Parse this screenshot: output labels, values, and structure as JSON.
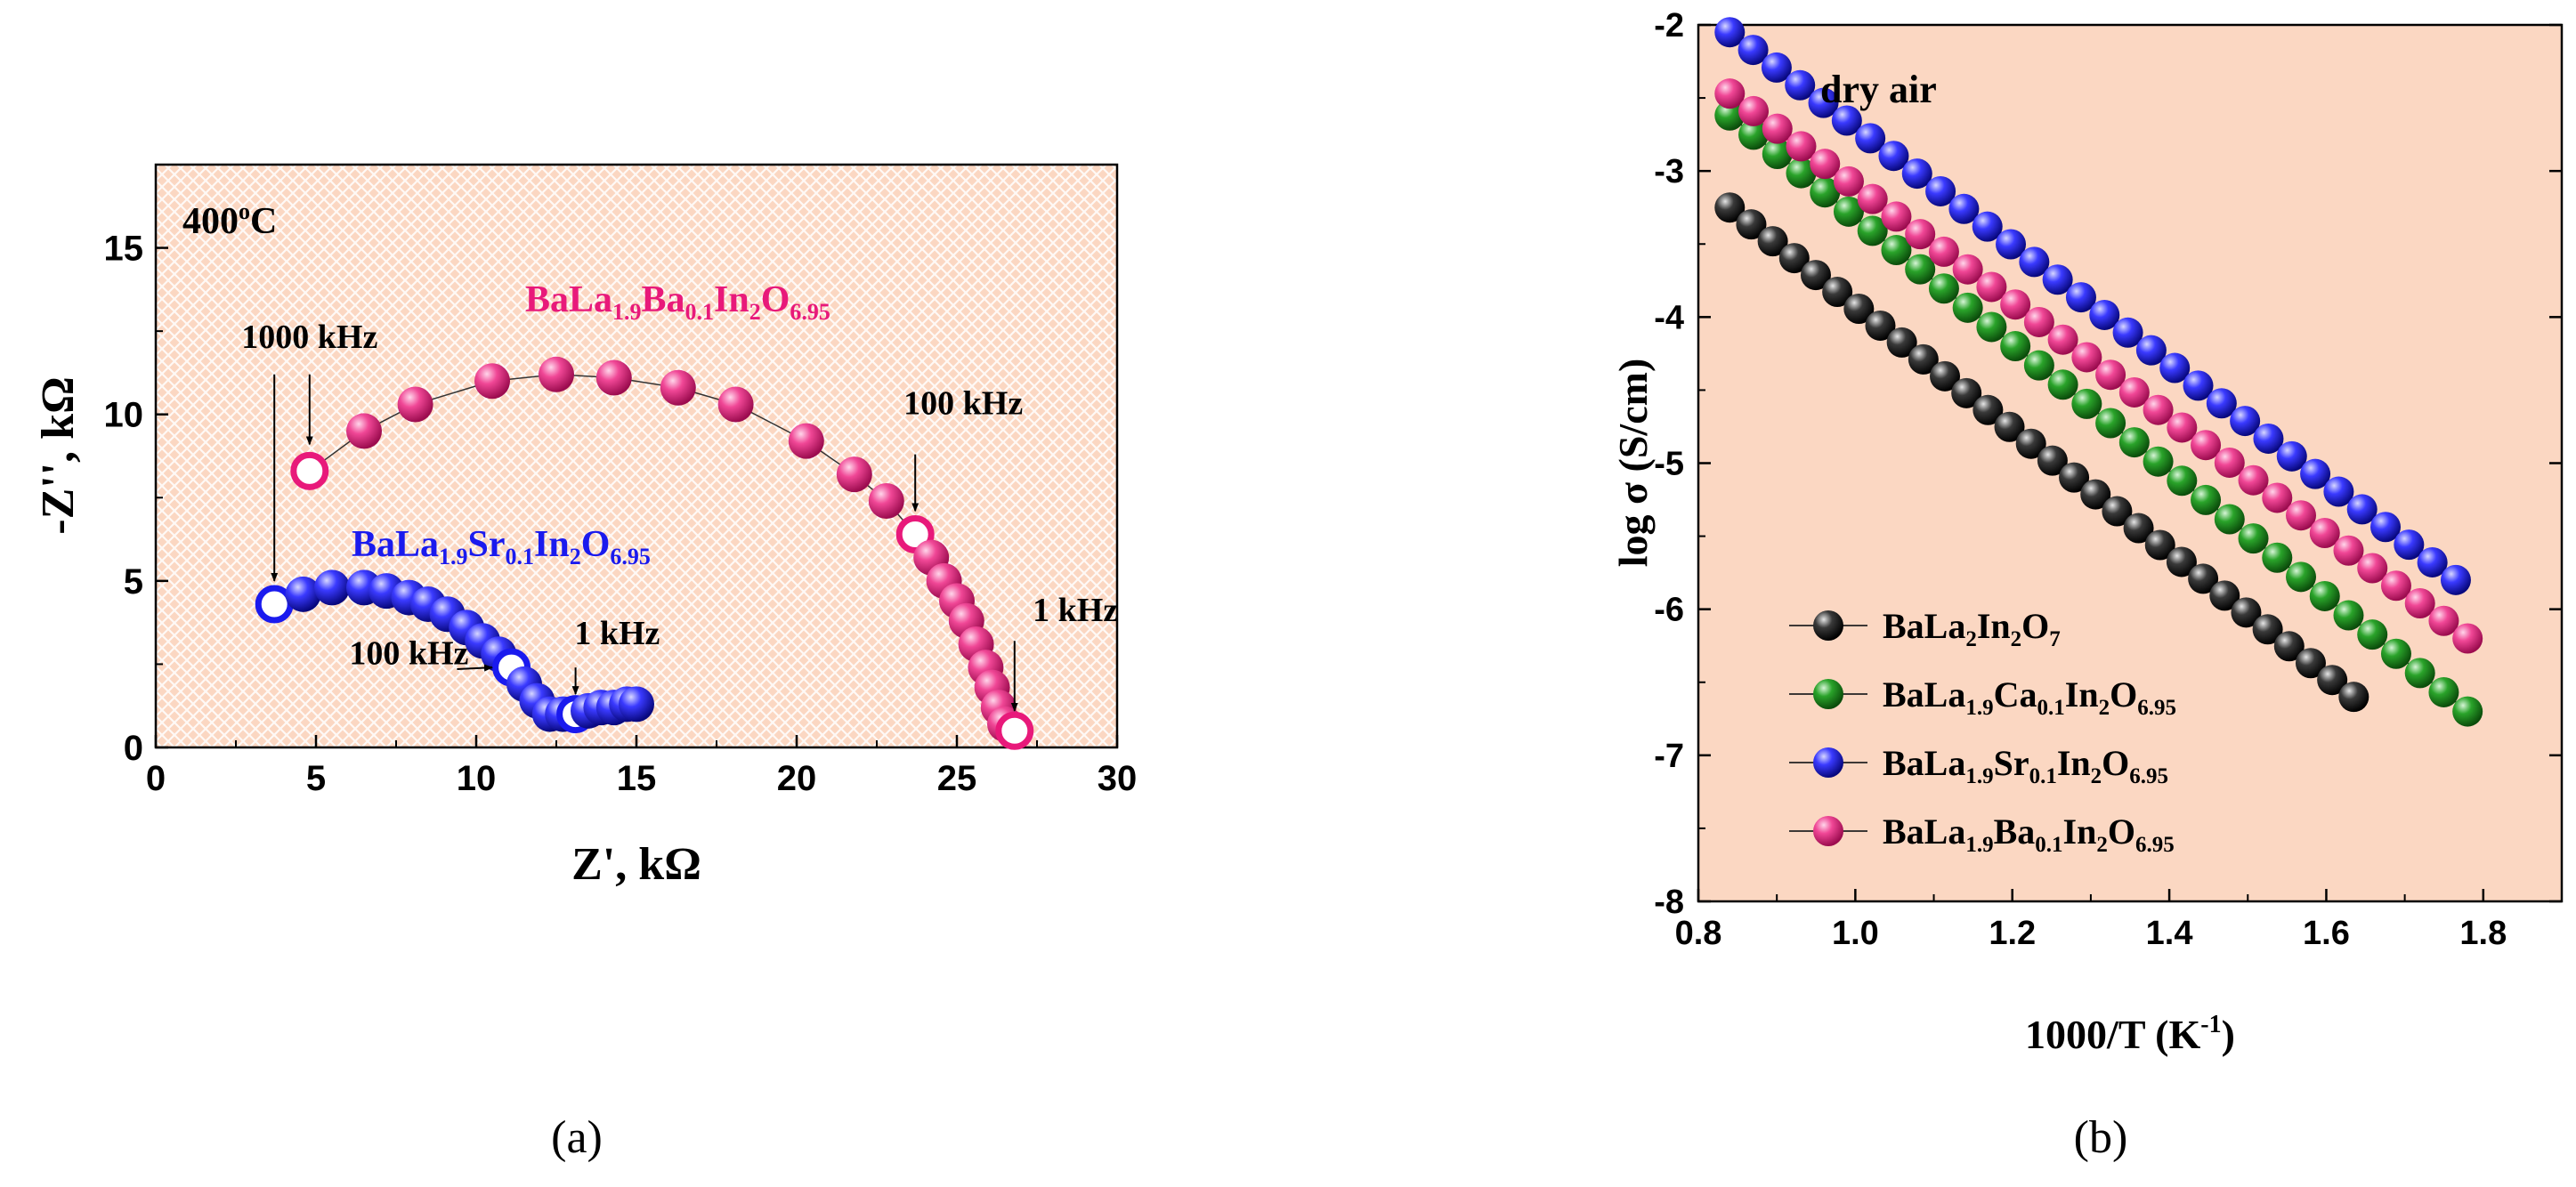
{
  "colors": {
    "panel_bg": "#fbd7c2",
    "hatch": "#ffffff",
    "pink": "#e8197a",
    "blue": "#1a1aee",
    "green": "#1c8a1c",
    "black": "#111111",
    "ink": "#000000"
  },
  "chart_data": [
    {
      "type": "scatter",
      "panel_label": "(a)",
      "title_annotation": "400°C",
      "title_temp": "400",
      "title_deg": "o",
      "title_unit": "C",
      "xlabel": "Z', kΩ",
      "ylabel": "-Z'', kΩ",
      "xlim": [
        0,
        30
      ],
      "ylim": [
        0,
        17.5
      ],
      "xticks": [
        0,
        5,
        10,
        15,
        20,
        25,
        30
      ],
      "yticks": [
        0,
        5,
        10,
        15
      ],
      "series": [
        {
          "name": "BaLa1.9Ba0.1In2O6.95",
          "label_parts": [
            {
              "t": "BaLa",
              "s": "n"
            },
            {
              "t": "1.9",
              "s": "sub"
            },
            {
              "t": "Ba",
              "s": "n"
            },
            {
              "t": "0.1",
              "s": "sub"
            },
            {
              "t": "In",
              "s": "n"
            },
            {
              "t": "2",
              "s": "sub"
            },
            {
              "t": "O",
              "s": "n"
            },
            {
              "t": "6.95",
              "s": "sub"
            }
          ],
          "color": "pink",
          "x": [
            4.8,
            6.5,
            8.1,
            10.5,
            12.5,
            14.3,
            16.3,
            18.1,
            20.3,
            21.8,
            22.8,
            23.7,
            24.2,
            24.6,
            25.0,
            25.3,
            25.6,
            25.9,
            26.1,
            26.3,
            26.5,
            26.8
          ],
          "y": [
            8.3,
            9.5,
            10.3,
            11.0,
            11.2,
            11.1,
            10.8,
            10.3,
            9.2,
            8.2,
            7.4,
            6.4,
            5.7,
            5.0,
            4.4,
            3.8,
            3.1,
            2.4,
            1.8,
            1.2,
            0.7,
            0.5
          ],
          "hollow_index": [
            0,
            11,
            21
          ]
        },
        {
          "name": "BaLa1.9Sr0.1In2O6.95",
          "label_parts": [
            {
              "t": "BaLa",
              "s": "n"
            },
            {
              "t": "1.9",
              "s": "sub"
            },
            {
              "t": "Sr",
              "s": "n"
            },
            {
              "t": "0.1",
              "s": "sub"
            },
            {
              "t": "In",
              "s": "n"
            },
            {
              "t": "2",
              "s": "sub"
            },
            {
              "t": "O",
              "s": "n"
            },
            {
              "t": "6.95",
              "s": "sub"
            }
          ],
          "color": "blue",
          "x": [
            3.7,
            4.6,
            5.5,
            6.5,
            7.2,
            7.9,
            8.5,
            9.1,
            9.7,
            10.2,
            10.7,
            11.1,
            11.5,
            11.9,
            12.3,
            12.7,
            13.1,
            13.5,
            13.9,
            14.3,
            14.7,
            15.0
          ],
          "y": [
            4.3,
            4.6,
            4.8,
            4.8,
            4.7,
            4.5,
            4.3,
            4.0,
            3.6,
            3.2,
            2.8,
            2.4,
            1.9,
            1.4,
            1.0,
            1.0,
            1.0,
            1.1,
            1.2,
            1.2,
            1.3,
            1.3
          ],
          "hollow_index": [
            0,
            11,
            16
          ]
        }
      ],
      "annotations": [
        {
          "text": "1000 kHz",
          "x": 4.8,
          "y": 12.0,
          "arrows": [
            {
              "from": [
                4.8,
                11.2
              ],
              "to": [
                4.8,
                9.1
              ]
            },
            {
              "from": [
                3.7,
                11.2
              ],
              "to": [
                3.7,
                5.0
              ]
            }
          ]
        },
        {
          "text": "100 kHz",
          "x": 25.2,
          "y": 10.0,
          "arrows": [
            {
              "from": [
                23.7,
                8.8
              ],
              "to": [
                23.7,
                7.1
              ]
            }
          ]
        },
        {
          "text": "1 kHz",
          "x": 28.7,
          "y": 3.8,
          "arrows": [
            {
              "from": [
                26.8,
                3.2
              ],
              "to": [
                26.8,
                1.1
              ]
            }
          ]
        },
        {
          "text": "100 kHz",
          "x": 7.9,
          "y": 2.5,
          "arrows": [
            {
              "from": [
                9.4,
                2.35
              ],
              "to": [
                10.5,
                2.4
              ]
            }
          ]
        },
        {
          "text": "1 kHz",
          "x": 14.4,
          "y": 3.1,
          "arrows": [
            {
              "from": [
                13.1,
                2.4
              ],
              "to": [
                13.1,
                1.6
              ]
            }
          ]
        }
      ]
    },
    {
      "type": "line",
      "panel_label": "(b)",
      "annotation": "dry air",
      "xlabel": "1000/T (K",
      "xlabel_sup": "-1",
      "xlabel_end": ")",
      "ylabel": "log σ (S/cm)",
      "xlim": [
        0.8,
        1.9
      ],
      "ylim": [
        -8,
        -2
      ],
      "xticks": [
        0.8,
        1.0,
        1.2,
        1.4,
        1.6,
        1.8
      ],
      "xtick_labels": [
        "0.8",
        "1.0",
        "1.2",
        "1.4",
        "1.6",
        "1.8"
      ],
      "yticks": [
        -8,
        -7,
        -6,
        -5,
        -4,
        -3,
        -2
      ],
      "ytick_labels": [
        "-8",
        "-7",
        "-6",
        "-5",
        "-4",
        "-3",
        "-2"
      ],
      "legend_position": "bottom-left",
      "series": [
        {
          "name": "BaLa2In2O7",
          "label_parts": [
            {
              "t": "BaLa",
              "s": "n"
            },
            {
              "t": "2",
              "s": "sub"
            },
            {
              "t": "In",
              "s": "n"
            },
            {
              "t": "2",
              "s": "sub"
            },
            {
              "t": "O",
              "s": "n"
            },
            {
              "t": "7",
              "s": "sub"
            }
          ],
          "color": "black",
          "x_start": 0.84,
          "x_end": 1.635,
          "y_start": -3.25,
          "y_end": -6.6,
          "n": 30
        },
        {
          "name": "BaLa1.9Ca0.1In2O6.95",
          "label_parts": [
            {
              "t": "BaLa",
              "s": "n"
            },
            {
              "t": "1.9",
              "s": "sub"
            },
            {
              "t": "Ca",
              "s": "n"
            },
            {
              "t": "0.1",
              "s": "sub"
            },
            {
              "t": "In",
              "s": "n"
            },
            {
              "t": "2",
              "s": "sub"
            },
            {
              "t": "O",
              "s": "n"
            },
            {
              "t": "6.95",
              "s": "sub"
            }
          ],
          "color": "green",
          "x_start": 0.84,
          "x_end": 1.78,
          "y_start": -2.62,
          "y_end": -6.7,
          "n": 32
        },
        {
          "name": "BaLa1.9Sr0.1In2O6.95",
          "label_parts": [
            {
              "t": "BaLa",
              "s": "n"
            },
            {
              "t": "1.9",
              "s": "sub"
            },
            {
              "t": "Sr",
              "s": "n"
            },
            {
              "t": "0.1",
              "s": "sub"
            },
            {
              "t": "In",
              "s": "n"
            },
            {
              "t": "2",
              "s": "sub"
            },
            {
              "t": "O",
              "s": "n"
            },
            {
              "t": "6.95",
              "s": "sub"
            }
          ],
          "color": "blue",
          "x_start": 0.84,
          "x_end": 1.765,
          "y_start": -2.05,
          "y_end": -5.8,
          "n": 32
        },
        {
          "name": "BaLa1.9Ba0.1In2O6.95",
          "label_parts": [
            {
              "t": "BaLa",
              "s": "n"
            },
            {
              "t": "1.9",
              "s": "sub"
            },
            {
              "t": "Ba",
              "s": "n"
            },
            {
              "t": "0.1",
              "s": "sub"
            },
            {
              "t": "In",
              "s": "n"
            },
            {
              "t": "2",
              "s": "sub"
            },
            {
              "t": "O",
              "s": "n"
            },
            {
              "t": "6.95",
              "s": "sub"
            }
          ],
          "color": "pink",
          "x_start": 0.84,
          "x_end": 1.78,
          "y_start": -2.47,
          "y_end": -6.2,
          "n": 32
        }
      ]
    }
  ]
}
